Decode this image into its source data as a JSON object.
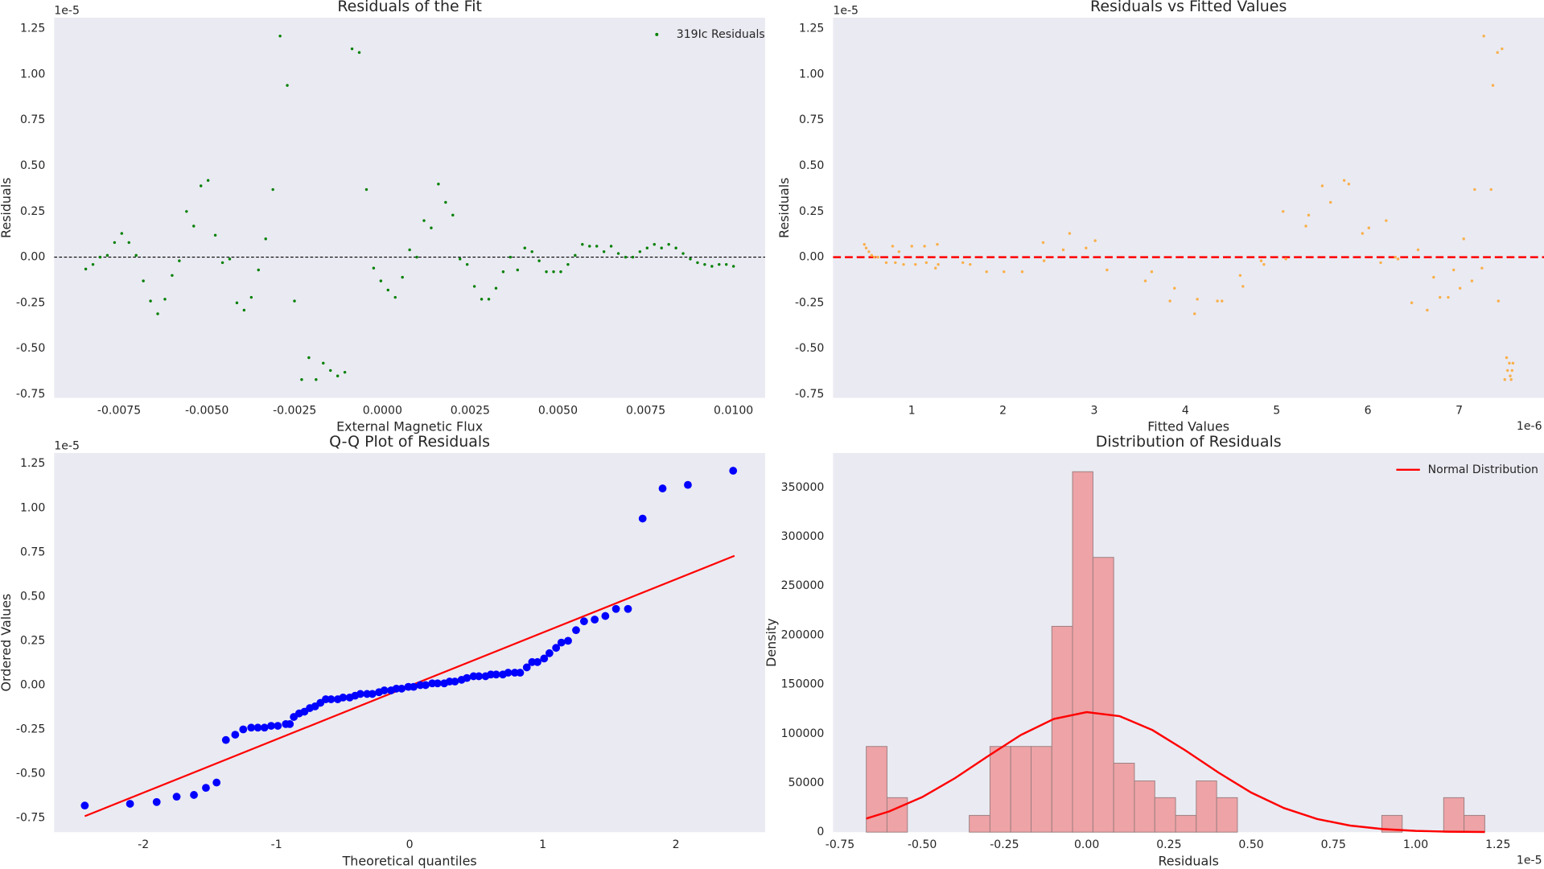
{
  "chart_data": [
    {
      "type": "scatter",
      "title": "Residuals of the Fit",
      "x_label": "External Magnetic Flux",
      "y_label": "Residuals",
      "y_offset_label": "1e-5",
      "legend": "upper right",
      "grid": false,
      "xlim": [
        -0.00935,
        0.0109
      ],
      "ylim": [
        -0.77,
        1.31
      ],
      "xticks": [
        -0.0075,
        {
          "value": -0.005,
          "label": "-0.0050"
        },
        -0.0025,
        {
          "value": 0,
          "label": "0.0000"
        },
        0.0025,
        {
          "value": 0.005,
          "label": "0.0050"
        },
        0.0075,
        {
          "value": 0.01,
          "label": "0.0100"
        }
      ],
      "yticks": [
        -0.75,
        {
          "value": -0.5,
          "label": "-0.50"
        },
        -0.25,
        {
          "value": 0,
          "label": "0.00"
        },
        0.25,
        {
          "value": 0.5,
          "label": "0.50"
        },
        0.75,
        {
          "value": 1,
          "label": "1.00"
        },
        1.25
      ],
      "hline": {
        "value": 0,
        "color": "#000000",
        "linestyle": "dashed"
      },
      "series": [
        {
          "name": "319Ic Residuals",
          "color": "#008000",
          "x": [
            -0.00845,
            -0.008245,
            -0.00804,
            -0.007835,
            -0.00763,
            -0.007425,
            -0.00722,
            -0.007015,
            -0.00681,
            -0.006605,
            -0.0064,
            -0.006195,
            -0.00599,
            -0.005785,
            -0.00558,
            -0.005375,
            -0.00517,
            -0.004965,
            -0.00476,
            -0.004555,
            -0.00435,
            -0.004145,
            -0.00394,
            -0.003735,
            -0.00353,
            -0.003325,
            -0.00312,
            -0.002915,
            -0.00271,
            -0.002505,
            -0.0023,
            -0.002095,
            -0.00189,
            -0.001685,
            -0.00148,
            -0.001275,
            -0.00107,
            -0.000865,
            -0.00066,
            -0.000455,
            -0.00025,
            -4.5e-05,
            0.00016,
            0.000365,
            0.00057,
            0.000775,
            0.00098,
            0.001185,
            0.00139,
            0.001595,
            0.0018,
            0.002005,
            0.00221,
            0.002415,
            0.00262,
            0.002825,
            0.00303,
            0.003235,
            0.00344,
            0.003645,
            0.00385,
            0.004055,
            0.00426,
            0.004465,
            0.00467,
            0.004875,
            0.00508,
            0.005285,
            0.00549,
            0.005695,
            0.0059,
            0.006105,
            0.00631,
            0.006515,
            0.00672,
            0.006925,
            0.00713,
            0.007335,
            0.00754,
            0.007745,
            0.00795,
            0.008155,
            0.00836,
            0.008565,
            0.00877,
            0.008975,
            0.00918,
            0.009385,
            0.00959,
            0.009795,
            0.01
          ],
          "values": [
            -0.065,
            -0.04,
            0.0,
            0.01,
            0.08,
            0.13,
            0.08,
            0.01,
            -0.13,
            -0.24,
            -0.31,
            -0.23,
            -0.1,
            -0.02,
            0.25,
            0.17,
            0.39,
            0.42,
            0.12,
            -0.03,
            -0.01,
            -0.25,
            -0.29,
            -0.22,
            -0.07,
            0.1,
            0.37,
            1.21,
            0.94,
            -0.24,
            -0.67,
            -0.55,
            -0.67,
            -0.58,
            -0.62,
            -0.65,
            -0.63,
            1.14,
            1.12,
            0.37,
            -0.06,
            -0.13,
            -0.18,
            -0.22,
            -0.11,
            0.04,
            0.0,
            0.2,
            0.16,
            0.4,
            0.3,
            0.23,
            -0.01,
            -0.04,
            -0.16,
            -0.23,
            -0.23,
            -0.17,
            -0.08,
            0.0,
            -0.07,
            0.05,
            0.03,
            -0.02,
            -0.08,
            -0.08,
            -0.08,
            -0.04,
            0.01,
            0.07,
            0.06,
            0.06,
            0.03,
            0.06,
            0.02,
            0.0,
            0.0,
            0.03,
            0.05,
            0.07,
            0.05,
            0.07,
            0.05,
            0.02,
            -0.01,
            -0.03,
            -0.04,
            -0.05,
            -0.04,
            -0.04,
            -0.05
          ]
        }
      ]
    },
    {
      "type": "scatter",
      "title": "Residuals vs Fitted Values",
      "x_label": "Fitted Values",
      "y_label": "Residuals",
      "y_offset_label": "1e-5",
      "x_offset_label": "1e-6",
      "grid": false,
      "xlim": [
        0.137,
        7.93
      ],
      "ylim": [
        -0.77,
        1.31
      ],
      "xticks": [
        1,
        2,
        3,
        4,
        5,
        6,
        7
      ],
      "yticks": [
        -0.75,
        {
          "value": -0.5,
          "label": "-0.50"
        },
        -0.25,
        {
          "value": 0,
          "label": "0.00"
        },
        0.25,
        {
          "value": 0.5,
          "label": "0.50"
        },
        0.75,
        {
          "value": 1,
          "label": "1.00"
        },
        1.25
      ],
      "hline": {
        "value": 0,
        "color": "#ff0000",
        "linestyle": "dashed"
      },
      "series": [
        {
          "color": "#f9b04a",
          "x": [
            0.48,
            0.5,
            0.53,
            0.56,
            0.59,
            0.63,
            0.72,
            0.79,
            0.82,
            0.86,
            0.91,
            1.0,
            1.04,
            1.14,
            1.16,
            1.26,
            1.28,
            1.29,
            1.56,
            1.64,
            1.82,
            2.01,
            2.21,
            2.44,
            2.45,
            2.66,
            2.73,
            2.91,
            3.01,
            3.14,
            3.56,
            3.63,
            3.83,
            3.88,
            4.1,
            4.13,
            4.35,
            4.4,
            4.6,
            4.63,
            4.83,
            4.86,
            5.07,
            5.1,
            5.32,
            5.35,
            5.5,
            5.59,
            5.74,
            5.79,
            5.94,
            6.01,
            6.14,
            6.2,
            6.3,
            6.33,
            6.48,
            6.55,
            6.65,
            6.72,
            6.79,
            6.88,
            6.94,
            7.01,
            7.05,
            7.14,
            7.17,
            7.25,
            7.27,
            7.35,
            7.37,
            7.42,
            7.43,
            7.47,
            7.5,
            7.52,
            7.53,
            7.55,
            7.56,
            7.57,
            7.58,
            7.59
          ],
          "values": [
            0.07,
            0.05,
            0.03,
            0.01,
            0.0,
            0.0,
            -0.03,
            0.06,
            -0.03,
            0.03,
            -0.04,
            0.06,
            -0.04,
            0.06,
            -0.03,
            -0.06,
            0.07,
            -0.04,
            -0.03,
            -0.04,
            -0.08,
            -0.08,
            -0.08,
            0.08,
            -0.02,
            0.04,
            0.13,
            0.05,
            0.09,
            -0.07,
            -0.13,
            -0.08,
            -0.24,
            -0.17,
            -0.31,
            -0.23,
            -0.24,
            -0.24,
            -0.1,
            -0.16,
            -0.02,
            -0.04,
            0.25,
            -0.01,
            0.17,
            0.23,
            0.39,
            0.3,
            0.42,
            0.4,
            0.13,
            0.16,
            -0.03,
            0.2,
            0.0,
            -0.01,
            -0.25,
            0.04,
            -0.29,
            -0.11,
            -0.22,
            -0.22,
            -0.07,
            -0.17,
            0.1,
            -0.13,
            0.37,
            -0.06,
            1.21,
            0.37,
            0.94,
            1.12,
            -0.24,
            1.14,
            -0.67,
            -0.55,
            -0.62,
            -0.58,
            -0.65,
            -0.67,
            -0.62,
            -0.58
          ]
        }
      ]
    },
    {
      "type": "scatter",
      "title": "Q-Q Plot of Residuals",
      "x_label": "Theoretical quantiles",
      "y_label": "Ordered Values",
      "y_offset_label": "1e-5",
      "grid": false,
      "xlim": [
        -2.67,
        2.67
      ],
      "ylim": [
        -0.83,
        1.31
      ],
      "xticks": [
        -2,
        -1,
        0,
        1,
        2
      ],
      "yticks": [
        -0.75,
        {
          "value": -0.5,
          "label": "-0.50"
        },
        -0.25,
        {
          "value": 0,
          "label": "0.00"
        },
        0.25,
        {
          "value": 0.5,
          "label": "0.50"
        },
        0.75,
        {
          "value": 1,
          "label": "1.00"
        },
        1.25
      ],
      "fit_line": {
        "color": "#ff0000",
        "x": [
          -2.44,
          2.44
        ],
        "y": [
          -0.74,
          0.73
        ]
      },
      "series": [
        {
          "color": "#0000ff",
          "x": [
            -2.44,
            -2.1,
            -1.9,
            -1.75,
            -1.62,
            -1.53,
            -1.45,
            -1.38,
            -1.31,
            -1.25,
            -1.19,
            -1.14,
            -1.09,
            -1.04,
            -0.99,
            -0.93,
            -0.9,
            -0.87,
            -0.83,
            -0.79,
            -0.75,
            -0.71,
            -0.67,
            -0.63,
            -0.59,
            -0.54,
            -0.5,
            -0.45,
            -0.41,
            -0.37,
            -0.32,
            -0.28,
            -0.23,
            -0.19,
            -0.14,
            -0.1,
            -0.06,
            -0.01,
            0.03,
            0.08,
            0.12,
            0.17,
            0.21,
            0.26,
            0.3,
            0.34,
            0.39,
            0.43,
            0.48,
            0.52,
            0.57,
            0.61,
            0.65,
            0.7,
            0.74,
            0.79,
            0.83,
            0.88,
            0.92,
            0.96,
            1.01,
            1.05,
            1.1,
            1.14,
            1.19,
            1.25,
            1.31,
            1.39,
            1.47,
            1.55,
            1.64,
            1.75,
            1.9,
            2.09,
            2.43
          ],
          "values": [
            -0.68,
            -0.67,
            -0.66,
            -0.63,
            -0.62,
            -0.58,
            -0.55,
            -0.31,
            -0.28,
            -0.25,
            -0.24,
            -0.24,
            -0.24,
            -0.23,
            -0.23,
            -0.22,
            -0.22,
            -0.18,
            -0.16,
            -0.15,
            -0.13,
            -0.12,
            -0.1,
            -0.08,
            -0.08,
            -0.08,
            -0.07,
            -0.07,
            -0.06,
            -0.05,
            -0.05,
            -0.05,
            -0.04,
            -0.03,
            -0.03,
            -0.02,
            -0.02,
            -0.01,
            -0.01,
            0.0,
            0.0,
            0.01,
            0.01,
            0.01,
            0.02,
            0.02,
            0.03,
            0.04,
            0.05,
            0.05,
            0.05,
            0.06,
            0.06,
            0.06,
            0.07,
            0.07,
            0.07,
            0.1,
            0.13,
            0.13,
            0.15,
            0.18,
            0.21,
            0.24,
            0.25,
            0.31,
            0.36,
            0.37,
            0.39,
            0.43,
            0.43,
            0.94,
            1.11,
            1.13,
            1.21
          ]
        }
      ]
    },
    {
      "type": "histogram",
      "title": "Distribution of Residuals",
      "x_label": "Residuals",
      "y_label": "Density",
      "x_offset_label": "1e-5",
      "legend": "upper right",
      "grid": false,
      "xlim": [
        -0.771,
        1.39
      ],
      "ylim": [
        0,
        385000
      ],
      "xticks": [
        -0.75,
        {
          "value": -0.5,
          "label": "-0.50"
        },
        -0.25,
        {
          "value": 0,
          "label": "0.00"
        },
        0.25,
        {
          "value": 0.5,
          "label": "0.50"
        },
        0.75,
        {
          "value": 1,
          "label": "1.00"
        },
        1.25
      ],
      "yticks": [
        0,
        50000,
        100000,
        150000,
        200000,
        250000,
        300000,
        350000
      ],
      "color": "#eea3a6",
      "edgecolor": "#9c7f81",
      "bins": [
        -0.67,
        -0.607,
        -0.545,
        -0.482,
        -0.419,
        -0.357,
        -0.294,
        -0.231,
        -0.169,
        -0.106,
        -0.043,
        0.019,
        0.082,
        0.145,
        0.207,
        0.27,
        0.333,
        0.395,
        0.458,
        0.521,
        0.583,
        0.646,
        0.709,
        0.771,
        0.834,
        0.897,
        0.959,
        1.022,
        1.085,
        1.147,
        1.21
      ],
      "values": [
        87000,
        35000,
        0,
        0,
        0,
        17000,
        87000,
        87000,
        87000,
        209000,
        366000,
        279000,
        70000,
        52000,
        35000,
        17000,
        52000,
        35000,
        0,
        0,
        0,
        0,
        0,
        0,
        0,
        17000,
        0,
        0,
        35000,
        17000
      ],
      "curve": {
        "name": "Normal Distribution",
        "color": "#ff0000",
        "x": [
          -0.67,
          -0.6,
          -0.5,
          -0.4,
          -0.3,
          -0.2,
          -0.1,
          0,
          0.1,
          0.2,
          0.3,
          0.4,
          0.5,
          0.6,
          0.7,
          0.8,
          0.9,
          1.0,
          1.1,
          1.21
        ],
        "values": [
          13800,
          21100,
          35600,
          54900,
          77200,
          98700,
          114900,
          121900,
          117800,
          103600,
          83000,
          60600,
          40200,
          24400,
          13400,
          6700,
          3100,
          1300,
          490,
          150
        ]
      }
    }
  ]
}
